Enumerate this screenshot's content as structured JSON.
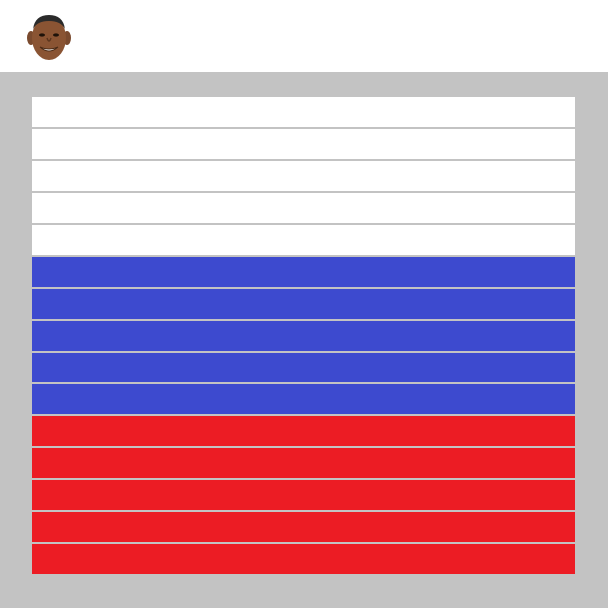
{
  "header": {
    "avatar_icon": "player-face-avatar"
  },
  "board": {
    "background": "#c3c3c3",
    "rows": [
      {
        "color": "#ffffff"
      },
      {
        "color": "#ffffff"
      },
      {
        "color": "#ffffff"
      },
      {
        "color": "#ffffff"
      },
      {
        "color": "#ffffff"
      },
      {
        "color": "#3d4acf"
      },
      {
        "color": "#3d4acf"
      },
      {
        "color": "#3d4acf"
      },
      {
        "color": "#3d4acf"
      },
      {
        "color": "#3d4acf"
      },
      {
        "color": "#ec1c24"
      },
      {
        "color": "#ec1c24"
      },
      {
        "color": "#ec1c24"
      },
      {
        "color": "#ec1c24"
      },
      {
        "color": "#ec1c24"
      }
    ]
  }
}
